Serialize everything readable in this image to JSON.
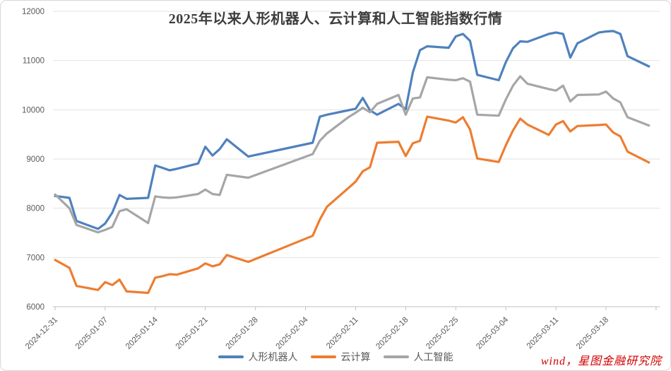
{
  "chart": {
    "title": "2025年以来人形机器人、云计算和人工智能指数行情",
    "source_note": "wind，星图金融研究院"
  },
  "chart_data": {
    "type": "line",
    "title": "2025年以来人形机器人、云计算和人工智能指数行情",
    "xlabel": "",
    "ylabel": "",
    "ylim": [
      6000,
      12000
    ],
    "y_tick_labels": [
      6000,
      7000,
      8000,
      9000,
      10000,
      11000,
      12000
    ],
    "grid": "horizontal",
    "legend_position": "bottom",
    "x_tick_labels": [
      "2024-12-31",
      "2025-01-07",
      "2025-01-14",
      "2025-01-21",
      "2025-01-28",
      "2025-02-04",
      "2025-02-11",
      "2025-02-18",
      "2025-02-25",
      "2025-03-04",
      "2025-03-11",
      "2025-03-18"
    ],
    "x": [
      "2024-12-31",
      "2025-01-02",
      "2025-01-03",
      "2025-01-06",
      "2025-01-07",
      "2025-01-08",
      "2025-01-09",
      "2025-01-10",
      "2025-01-13",
      "2025-01-14",
      "2025-01-15",
      "2025-01-16",
      "2025-01-17",
      "2025-01-20",
      "2025-01-21",
      "2025-01-22",
      "2025-01-23",
      "2025-01-24",
      "2025-01-27",
      "2025-02-05",
      "2025-02-06",
      "2025-02-07",
      "2025-02-10",
      "2025-02-11",
      "2025-02-12",
      "2025-02-13",
      "2025-02-14",
      "2025-02-17",
      "2025-02-18",
      "2025-02-19",
      "2025-02-20",
      "2025-02-21",
      "2025-02-24",
      "2025-02-25",
      "2025-02-26",
      "2025-02-27",
      "2025-02-28",
      "2025-03-03",
      "2025-03-04",
      "2025-03-05",
      "2025-03-06",
      "2025-03-07",
      "2025-03-10",
      "2025-03-11",
      "2025-03-12",
      "2025-03-13",
      "2025-03-14",
      "2025-03-17",
      "2025-03-18",
      "2025-03-19",
      "2025-03-20",
      "2025-03-21",
      "2025-03-24"
    ],
    "series": [
      {
        "id": "humanoid-robot",
        "name": "人形机器人",
        "color": "#4f81bd",
        "values": [
          8250,
          8210,
          7740,
          7580,
          7690,
          7910,
          8270,
          8190,
          8210,
          8870,
          8820,
          8770,
          8800,
          8910,
          9250,
          9070,
          9200,
          9400,
          9050,
          9330,
          9860,
          9900,
          9990,
          10020,
          10240,
          9990,
          9900,
          10120,
          10010,
          10760,
          11210,
          11290,
          11260,
          11490,
          11540,
          11400,
          10710,
          10600,
          10970,
          11250,
          11390,
          11380,
          11540,
          11570,
          11540,
          11060,
          11350,
          11570,
          11590,
          11600,
          11540,
          11090,
          10880
        ]
      },
      {
        "id": "cloud-computing",
        "name": "云计算",
        "color": "#ed7d31",
        "values": [
          6950,
          6790,
          6420,
          6340,
          6500,
          6440,
          6550,
          6310,
          6280,
          6590,
          6620,
          6660,
          6650,
          6780,
          6880,
          6820,
          6860,
          7050,
          6910,
          7440,
          7770,
          8030,
          8410,
          8540,
          8750,
          8830,
          9330,
          9350,
          9060,
          9320,
          9370,
          9860,
          9780,
          9740,
          9850,
          9600,
          9010,
          8940,
          9280,
          9580,
          9820,
          9700,
          9490,
          9700,
          9770,
          9560,
          9670,
          9690,
          9700,
          9540,
          9460,
          9150,
          8930
        ]
      },
      {
        "id": "artificial-intelligence",
        "name": "人工智能",
        "color": "#a6a6a6",
        "values": [
          8280,
          8000,
          7660,
          7510,
          7560,
          7620,
          7940,
          7980,
          7700,
          8240,
          8220,
          8210,
          8220,
          8290,
          8380,
          8290,
          8270,
          8680,
          8620,
          9100,
          9370,
          9520,
          9850,
          9940,
          10040,
          9950,
          10120,
          10300,
          9900,
          10230,
          10250,
          10660,
          10610,
          10600,
          10640,
          10570,
          9900,
          9880,
          10210,
          10490,
          10680,
          10530,
          10420,
          10390,
          10490,
          10170,
          10300,
          10310,
          10370,
          10230,
          10150,
          9850,
          9680
        ]
      }
    ]
  }
}
